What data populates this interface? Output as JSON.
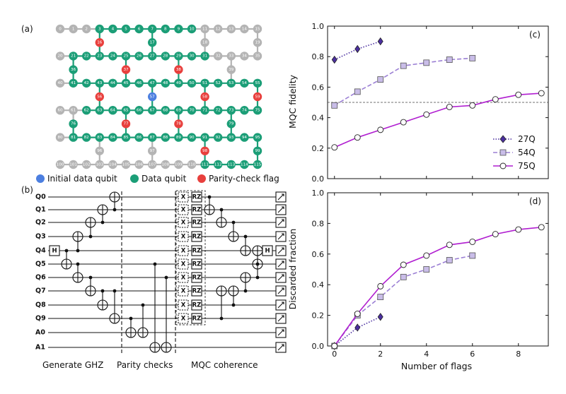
{
  "panels": {
    "a": "(a)",
    "b": "(b)",
    "c": "(c)",
    "d": "(d)"
  },
  "colors": {
    "data": "#1b9e77",
    "flag": "#e8403d",
    "initial": "#4c7fe0",
    "inactive": "#b4b4b4",
    "c27": "#4b2fa0",
    "c54": "#9b7fd4",
    "c75": "#b01ed0",
    "marker54": "#c9bde8"
  },
  "lattice": {
    "legend": {
      "initial": "Initial data qubit",
      "data": "Data qubit",
      "flag": "Parity-check flag"
    },
    "rows": [
      {
        "ids": [
          0,
          1,
          2,
          3,
          4,
          5,
          6,
          7,
          8,
          9,
          10,
          11,
          12,
          13,
          14,
          15
        ],
        "types": "IIIDDDDDDDDIIIII"
      },
      {
        "ids": [
          16,
          17,
          18,
          19
        ],
        "types": "FDII"
      },
      {
        "ids": [
          20,
          21,
          22,
          23,
          24,
          25,
          26,
          27,
          28,
          29,
          30,
          31,
          32,
          33,
          34,
          35
        ],
        "types": "IDDDDDDDDDDDIIII"
      },
      {
        "ids": [
          36,
          37,
          38,
          39
        ],
        "types": "DFFI"
      },
      {
        "ids": [
          40,
          41,
          42,
          43,
          44,
          45,
          46,
          47,
          48,
          49,
          50,
          51,
          52,
          53,
          54,
          55
        ],
        "types": "IDDDDDDDDDDDDDDD"
      },
      {
        "ids": [
          56,
          57,
          58,
          59
        ],
        "types": "FSFF"
      },
      {
        "ids": [
          60,
          61,
          62,
          63,
          64,
          65,
          66,
          67,
          68,
          69,
          70,
          71,
          72,
          73,
          74,
          75
        ],
        "types": "IIDDDDDDDDDDDDDD"
      },
      {
        "ids": [
          76,
          77,
          78,
          79
        ],
        "types": "DFFD"
      },
      {
        "ids": [
          80,
          81,
          82,
          83,
          84,
          85,
          86,
          87,
          88,
          89,
          90,
          91,
          92,
          93,
          94,
          95
        ],
        "types": "IDDDDDDDDDDDDDDD"
      },
      {
        "ids": [
          96,
          97,
          98,
          99
        ],
        "types": "IIFD"
      },
      {
        "ids": [
          100,
          101,
          102,
          103,
          104,
          105,
          106,
          107,
          108,
          109,
          110,
          111,
          112,
          113,
          114,
          115
        ],
        "types": "IIIIIIIIIIIDDDDD"
      }
    ]
  },
  "circuit": {
    "qubits": [
      "Q0",
      "Q1",
      "Q2",
      "Q3",
      "Q4",
      "Q5",
      "Q6",
      "Q7",
      "Q8",
      "Q9",
      "A0",
      "A1"
    ],
    "sections": [
      "Generate GHZ",
      "Parity checks",
      "MQC coherence"
    ],
    "gates": {
      "h": "H",
      "x": "X",
      "rz": "RZ"
    }
  },
  "chart_data": [
    {
      "type": "line",
      "panel": "(c)",
      "xlabel": "",
      "ylabel": "MQC fidelity",
      "xlim": [
        -0.3,
        9.3
      ],
      "ylim": [
        0.0,
        1.0
      ],
      "yticks": [
        "0.0",
        "0.2",
        "0.4",
        "0.6",
        "0.8",
        "1.0"
      ],
      "threshold": 0.5,
      "legend_position": "lower-right",
      "series": [
        {
          "name": "27Q",
          "x": [
            0,
            1,
            2
          ],
          "values": [
            0.78,
            0.85,
            0.9
          ],
          "style": "dotted",
          "marker": "diamond"
        },
        {
          "name": "54Q",
          "x": [
            0,
            1,
            2,
            3,
            4,
            5,
            6
          ],
          "values": [
            0.48,
            0.57,
            0.65,
            0.74,
            0.76,
            0.78,
            0.79
          ],
          "style": "dashed",
          "marker": "square"
        },
        {
          "name": "75Q",
          "x": [
            0,
            1,
            2,
            3,
            4,
            5,
            6,
            7,
            8,
            9
          ],
          "values": [
            0.205,
            0.27,
            0.32,
            0.37,
            0.42,
            0.47,
            0.48,
            0.52,
            0.55,
            0.56
          ],
          "style": "solid",
          "marker": "circle"
        }
      ]
    },
    {
      "type": "line",
      "panel": "(d)",
      "xlabel": "Number of flags",
      "ylabel": "Discarded fraction",
      "xlim": [
        -0.3,
        9.3
      ],
      "ylim": [
        0.0,
        1.0
      ],
      "xticks": [
        "0",
        "2",
        "4",
        "6",
        "8"
      ],
      "yticks": [
        "0.0",
        "0.2",
        "0.4",
        "0.6",
        "0.8",
        "1.0"
      ],
      "series": [
        {
          "name": "27Q",
          "x": [
            0,
            1,
            2
          ],
          "values": [
            0.0,
            0.12,
            0.19
          ],
          "style": "dotted",
          "marker": "diamond"
        },
        {
          "name": "54Q",
          "x": [
            0,
            1,
            2,
            3,
            4,
            5,
            6
          ],
          "values": [
            0.0,
            0.2,
            0.32,
            0.45,
            0.5,
            0.56,
            0.59
          ],
          "style": "dashed",
          "marker": "square"
        },
        {
          "name": "75Q",
          "x": [
            0,
            1,
            2,
            3,
            4,
            5,
            6,
            7,
            8,
            9
          ],
          "values": [
            0.0,
            0.21,
            0.39,
            0.53,
            0.59,
            0.66,
            0.68,
            0.73,
            0.76,
            0.775
          ],
          "style": "solid",
          "marker": "circle"
        }
      ]
    }
  ]
}
